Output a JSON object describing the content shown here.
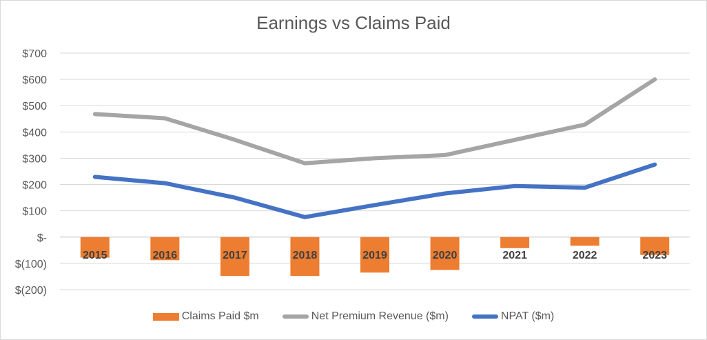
{
  "chart_data": {
    "type": "bar+line",
    "title": "Earnings vs Claims Paid",
    "categories": [
      "2015",
      "2016",
      "2017",
      "2018",
      "2019",
      "2020",
      "2021",
      "2022",
      "2023"
    ],
    "series": [
      {
        "name": "Claims Paid $m",
        "type": "bar",
        "color": "#ed7d31",
        "values": [
          -78,
          -88,
          -148,
          -148,
          -135,
          -125,
          -42,
          -33,
          -68
        ]
      },
      {
        "name": "Net Premium Revenue ($m)",
        "type": "line",
        "color": "#a5a5a5",
        "values": [
          468,
          452,
          370,
          281,
          300,
          312,
          370,
          428,
          600
        ]
      },
      {
        "name": "NPAT ($m)",
        "type": "line",
        "color": "#4472c4",
        "values": [
          229,
          205,
          150,
          76,
          122,
          166,
          194,
          188,
          276
        ]
      }
    ],
    "yaxis": {
      "min": -200,
      "max": 700,
      "step": 100,
      "tick_labels": [
        "$(200)",
        "$(100)",
        "$-",
        "$100",
        "$200",
        "$300",
        "$400",
        "$500",
        "$600",
        "$700"
      ]
    },
    "grid": true,
    "legend_position": "bottom"
  }
}
